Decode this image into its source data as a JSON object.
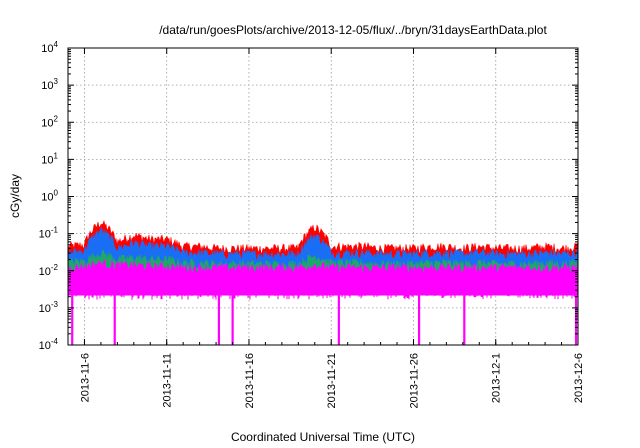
{
  "chart_data": {
    "type": "area",
    "title": "/data/run/goesPlots/archive/2013-12-05/flux/../bryn/31daysEarthData.plot",
    "xlabel": "Coordinated Universal Time (UTC)",
    "ylabel": "cGy/day",
    "y_scale": "log",
    "ylim": [
      0.0001,
      10000
    ],
    "xlim": [
      "2013-11-05",
      "2013-12-06"
    ],
    "grid": true,
    "x_ticks": [
      "2013-11-6",
      "2013-11-11",
      "2013-11-16",
      "2013-11-21",
      "2013-11-26",
      "2013-12-1",
      "2013-12-6"
    ],
    "y_ticks": [
      {
        "value": 0.0001,
        "base": "10",
        "exp": "-4"
      },
      {
        "value": 0.001,
        "base": "10",
        "exp": "-3"
      },
      {
        "value": 0.01,
        "base": "10",
        "exp": "-2"
      },
      {
        "value": 0.1,
        "base": "10",
        "exp": "-1"
      },
      {
        "value": 1,
        "base": "10",
        "exp": "0"
      },
      {
        "value": 10,
        "base": "10",
        "exp": "1"
      },
      {
        "value": 100,
        "base": "10",
        "exp": "2"
      },
      {
        "value": 1000,
        "base": "10",
        "exp": "3"
      },
      {
        "value": 10000,
        "base": "10",
        "exp": "4"
      }
    ],
    "series": [
      {
        "color": "#ff0000",
        "x": [
          "2013-11-05",
          "2013-11-06",
          "2013-11-07",
          "2013-11-08",
          "2013-11-09",
          "2013-11-10",
          "2013-11-11",
          "2013-11-12",
          "2013-11-13",
          "2013-11-14",
          "2013-11-15",
          "2013-11-16",
          "2013-11-17",
          "2013-11-18",
          "2013-11-19",
          "2013-11-20",
          "2013-11-21",
          "2013-11-22",
          "2013-11-23",
          "2013-11-24",
          "2013-11-25",
          "2013-11-26",
          "2013-11-27",
          "2013-11-28",
          "2013-11-29",
          "2013-11-30",
          "2013-12-01",
          "2013-12-02",
          "2013-12-03",
          "2013-12-04",
          "2013-12-05",
          "2013-12-06"
        ],
        "values": [
          0.045,
          0.05,
          0.2,
          0.06,
          0.09,
          0.07,
          0.07,
          0.045,
          0.045,
          0.04,
          0.04,
          0.04,
          0.04,
          0.04,
          0.04,
          0.15,
          0.045,
          0.045,
          0.045,
          0.04,
          0.04,
          0.04,
          0.045,
          0.045,
          0.04,
          0.045,
          0.04,
          0.04,
          0.04,
          0.045,
          0.04,
          0.045
        ]
      },
      {
        "color": "#1a6ef5",
        "x": [
          "2013-11-05",
          "2013-11-06",
          "2013-11-07",
          "2013-11-08",
          "2013-11-09",
          "2013-11-10",
          "2013-11-11",
          "2013-11-12",
          "2013-11-13",
          "2013-11-14",
          "2013-11-15",
          "2013-11-16",
          "2013-11-17",
          "2013-11-18",
          "2013-11-19",
          "2013-11-20",
          "2013-11-21",
          "2013-11-22",
          "2013-11-23",
          "2013-11-24",
          "2013-11-25",
          "2013-11-26",
          "2013-11-27",
          "2013-11-28",
          "2013-11-29",
          "2013-11-30",
          "2013-12-01",
          "2013-12-02",
          "2013-12-03",
          "2013-12-04",
          "2013-12-05",
          "2013-12-06"
        ],
        "values": [
          0.03,
          0.035,
          0.12,
          0.04,
          0.055,
          0.045,
          0.045,
          0.03,
          0.03,
          0.028,
          0.028,
          0.028,
          0.028,
          0.028,
          0.028,
          0.09,
          0.03,
          0.03,
          0.03,
          0.028,
          0.028,
          0.028,
          0.03,
          0.03,
          0.028,
          0.03,
          0.028,
          0.028,
          0.028,
          0.03,
          0.028,
          0.03
        ]
      },
      {
        "color": "#1fa86a",
        "x": [
          "2013-11-05",
          "2013-11-06",
          "2013-11-07",
          "2013-11-08",
          "2013-11-09",
          "2013-11-10",
          "2013-11-11",
          "2013-11-12",
          "2013-11-13",
          "2013-11-14",
          "2013-11-15",
          "2013-11-16",
          "2013-11-17",
          "2013-11-18",
          "2013-11-19",
          "2013-11-20",
          "2013-11-21",
          "2013-11-22",
          "2013-11-23",
          "2013-11-24",
          "2013-11-25",
          "2013-11-26",
          "2013-11-27",
          "2013-11-28",
          "2013-11-29",
          "2013-11-30",
          "2013-12-01",
          "2013-12-02",
          "2013-12-03",
          "2013-12-04",
          "2013-12-05",
          "2013-12-06"
        ],
        "values": [
          0.017,
          0.018,
          0.03,
          0.02,
          0.022,
          0.02,
          0.02,
          0.016,
          0.016,
          0.015,
          0.015,
          0.015,
          0.015,
          0.015,
          0.015,
          0.025,
          0.016,
          0.016,
          0.016,
          0.015,
          0.015,
          0.015,
          0.016,
          0.016,
          0.015,
          0.016,
          0.015,
          0.015,
          0.015,
          0.016,
          0.015,
          0.016
        ]
      },
      {
        "color": "#ff00ff",
        "x": [
          "2013-11-05",
          "2013-11-06",
          "2013-11-07",
          "2013-11-08",
          "2013-11-09",
          "2013-11-10",
          "2013-11-11",
          "2013-11-12",
          "2013-11-13",
          "2013-11-14",
          "2013-11-15",
          "2013-11-16",
          "2013-11-17",
          "2013-11-18",
          "2013-11-19",
          "2013-11-20",
          "2013-11-21",
          "2013-11-22",
          "2013-11-23",
          "2013-11-24",
          "2013-11-25",
          "2013-11-26",
          "2013-11-27",
          "2013-11-28",
          "2013-11-29",
          "2013-11-30",
          "2013-12-01",
          "2013-12-02",
          "2013-12-03",
          "2013-12-04",
          "2013-12-05",
          "2013-12-06"
        ],
        "values": [
          0.012,
          0.013,
          0.016,
          0.014,
          0.014,
          0.013,
          0.013,
          0.012,
          0.012,
          0.012,
          0.012,
          0.012,
          0.012,
          0.012,
          0.012,
          0.014,
          0.012,
          0.012,
          0.012,
          0.012,
          0.012,
          0.012,
          0.012,
          0.012,
          0.012,
          0.012,
          0.012,
          0.012,
          0.012,
          0.012,
          0.012,
          0.012
        ],
        "floor": 0.0022,
        "dropouts": [
          "2013-11-05T06:00",
          "2013-11-07T20:00",
          "2013-11-14T04:00",
          "2013-11-15T00:00",
          "2013-11-21T11:00",
          "2013-11-26T08:00",
          "2013-11-29T02:00",
          "2013-12-05T21:00"
        ]
      }
    ]
  }
}
